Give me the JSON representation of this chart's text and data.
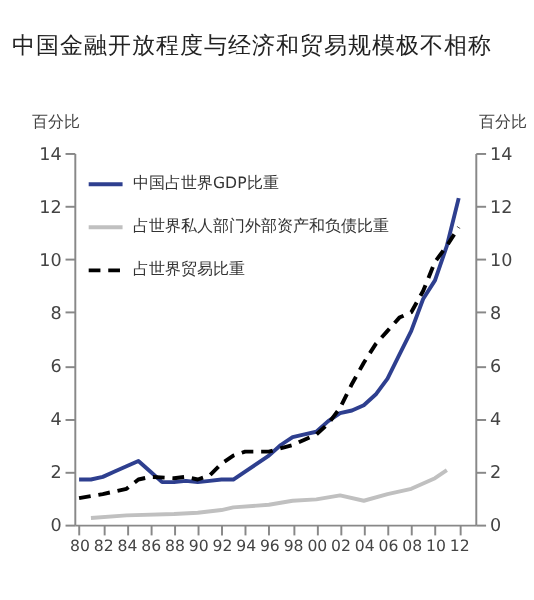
{
  "chart_data": {
    "type": "line",
    "title": "中国金融开放程度与经济和贸易规模极不相称",
    "ylabel": "百分比",
    "y2label": "百分比",
    "xlim": [
      1979.6,
      2013.4
    ],
    "xticks": [
      {
        "value": 1980,
        "label": "80"
      },
      {
        "value": 1982,
        "label": "82"
      },
      {
        "value": 1984,
        "label": "84"
      },
      {
        "value": 1986,
        "label": "86"
      },
      {
        "value": 1988,
        "label": "88"
      },
      {
        "value": 1990,
        "label": "90"
      },
      {
        "value": 1992,
        "label": "92"
      },
      {
        "value": 1994,
        "label": "94"
      },
      {
        "value": 1996,
        "label": "96"
      },
      {
        "value": 1998,
        "label": "98"
      },
      {
        "value": 2000,
        "label": "00"
      },
      {
        "value": 2002,
        "label": "02"
      },
      {
        "value": 2004,
        "label": "04"
      },
      {
        "value": 2006,
        "label": "06"
      },
      {
        "value": 2008,
        "label": "08"
      },
      {
        "value": 2010,
        "label": "10"
      },
      {
        "value": 2012,
        "label": "12"
      }
    ],
    "ylim": [
      0,
      14
    ],
    "yticks": [
      0,
      2,
      4,
      6,
      8,
      10,
      12,
      14
    ],
    "y2lim": [
      0,
      14
    ],
    "y2ticks": [
      0,
      2,
      4,
      6,
      8,
      10,
      12,
      14
    ],
    "grid": false,
    "legend": "top left",
    "series": [
      {
        "name": "中国占世界GDP比重",
        "color": "#2e3f8f",
        "line_style": "solid",
        "x": [
          1980,
          1981,
          1982,
          1983,
          1984,
          1985,
          1986,
          1987,
          1988,
          1989,
          1990,
          1991,
          1992,
          1993,
          1994,
          1995,
          1996,
          1997,
          1998,
          1999,
          2000,
          2001,
          2002,
          2003,
          2004,
          2005,
          2006,
          2007,
          2008,
          2009,
          2010,
          2011,
          2012
        ],
        "values": [
          1.7,
          1.7,
          1.8,
          2.0,
          2.2,
          2.4,
          2.0,
          1.6,
          1.6,
          1.65,
          1.6,
          1.65,
          1.7,
          1.7,
          2.0,
          2.3,
          2.6,
          3.0,
          3.3,
          3.4,
          3.5,
          3.9,
          4.2,
          4.3,
          4.5,
          4.9,
          5.5,
          6.4,
          7.3,
          8.5,
          9.2,
          10.5,
          12.3
        ]
      },
      {
        "name": "占世界私人部门外部资产和负债比重",
        "color": "#c0c0c0",
        "line_style": "solid",
        "x": [
          1981,
          1984,
          1988,
          1990,
          1992,
          1993,
          1996,
          1998,
          2000,
          2002,
          2004,
          2006,
          2008,
          2010,
          2011
        ],
        "values": [
          0.25,
          0.35,
          0.4,
          0.45,
          0.55,
          0.65,
          0.75,
          0.9,
          0.95,
          1.1,
          0.9,
          1.15,
          1.35,
          1.75,
          2.05
        ]
      },
      {
        "name": "占世界贸易比重",
        "color": "#000000",
        "line_style": "dashed",
        "x": [
          1980,
          1982,
          1984,
          1985,
          1986,
          1988,
          1989,
          1990,
          1991,
          1992,
          1993,
          1994,
          1996,
          1998,
          1999,
          2000,
          2001,
          2002,
          2003,
          2004,
          2005,
          2006,
          2007,
          2008,
          2009,
          2010,
          2011,
          2012
        ],
        "values": [
          1.0,
          1.15,
          1.35,
          1.7,
          1.8,
          1.75,
          1.8,
          1.7,
          1.85,
          2.3,
          2.6,
          2.75,
          2.75,
          3.0,
          3.2,
          3.4,
          3.8,
          4.4,
          5.3,
          6.1,
          6.8,
          7.3,
          7.8,
          8.0,
          8.8,
          9.9,
          10.5,
          11.2
        ]
      }
    ]
  }
}
